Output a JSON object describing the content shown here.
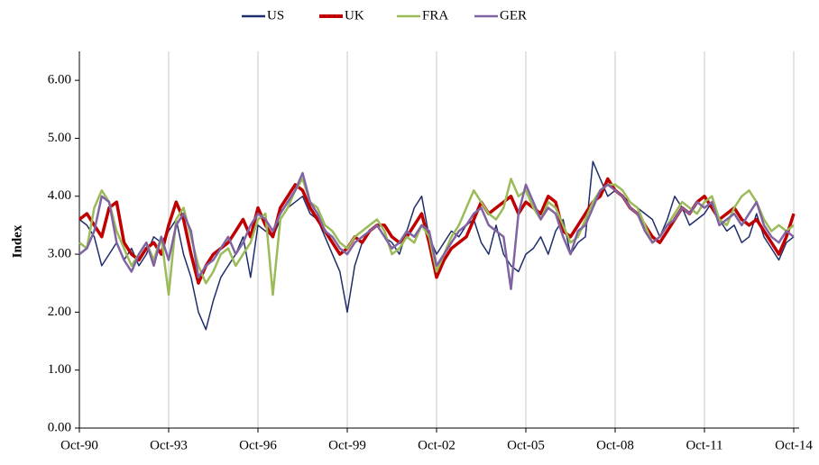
{
  "chart_data": {
    "type": "line",
    "y_label": "Index",
    "categories": [
      "Oct-90",
      null,
      null,
      null,
      null,
      null,
      null,
      null,
      null,
      null,
      null,
      null,
      "Oct-93",
      null,
      null,
      null,
      null,
      null,
      null,
      null,
      null,
      null,
      null,
      null,
      "Oct-96",
      null,
      null,
      null,
      null,
      null,
      null,
      null,
      null,
      null,
      null,
      null,
      "Oct-99",
      null,
      null,
      null,
      null,
      null,
      null,
      null,
      null,
      null,
      null,
      null,
      "Oct-02",
      null,
      null,
      null,
      null,
      null,
      null,
      null,
      null,
      null,
      null,
      null,
      "Oct-05",
      null,
      null,
      null,
      null,
      null,
      null,
      null,
      null,
      null,
      null,
      null,
      "Oct-08",
      null,
      null,
      null,
      null,
      null,
      null,
      null,
      null,
      null,
      null,
      null,
      "Oct-11",
      null,
      null,
      null,
      null,
      null,
      null,
      null,
      null,
      null,
      null,
      null,
      "Oct-14"
    ],
    "series": [
      {
        "name": "US",
        "color": "#1f2d6b",
        "values": [
          3.6,
          3.5,
          3.3,
          2.8,
          3.0,
          3.2,
          2.9,
          3.1,
          2.8,
          3.0,
          3.3,
          3.2,
          3.4,
          3.6,
          3.0,
          2.6,
          2.0,
          1.7,
          2.2,
          2.6,
          2.8,
          3.0,
          3.3,
          2.6,
          3.5,
          3.4,
          3.3,
          3.6,
          3.8,
          3.9,
          4.0,
          3.7,
          3.6,
          3.3,
          3.0,
          2.7,
          2.0,
          2.8,
          3.2,
          3.4,
          3.5,
          3.3,
          3.2,
          3.0,
          3.4,
          3.8,
          4.0,
          3.3,
          3.0,
          3.2,
          3.4,
          3.3,
          3.5,
          3.6,
          3.2,
          3.0,
          3.5,
          3.0,
          2.8,
          2.7,
          3.0,
          3.1,
          3.3,
          3.0,
          3.4,
          3.6,
          3.0,
          3.2,
          3.3,
          4.6,
          4.3,
          4.0,
          4.1,
          4.0,
          3.9,
          3.8,
          3.7,
          3.6,
          3.3,
          3.6,
          4.0,
          3.8,
          3.5,
          3.6,
          3.7,
          3.9,
          3.6,
          3.4,
          3.5,
          3.2,
          3.3,
          3.7,
          3.3,
          3.1,
          2.9,
          3.2,
          3.3
        ]
      },
      {
        "name": "UK",
        "color": "#c00000",
        "values": [
          3.6,
          3.7,
          3.5,
          3.3,
          3.8,
          3.9,
          3.2,
          3.0,
          2.9,
          3.1,
          3.2,
          3.0,
          3.5,
          3.9,
          3.6,
          3.0,
          2.5,
          2.8,
          3.0,
          3.1,
          3.2,
          3.4,
          3.6,
          3.3,
          3.8,
          3.5,
          3.3,
          3.8,
          4.0,
          4.2,
          4.1,
          3.8,
          3.6,
          3.4,
          3.2,
          3.0,
          3.1,
          3.3,
          3.2,
          3.4,
          3.5,
          3.5,
          3.3,
          3.2,
          3.3,
          3.5,
          3.7,
          3.2,
          2.6,
          2.9,
          3.1,
          3.2,
          3.3,
          3.6,
          3.9,
          3.7,
          3.8,
          3.9,
          4.0,
          3.7,
          3.9,
          3.8,
          3.7,
          4.0,
          3.9,
          3.4,
          3.3,
          3.5,
          3.7,
          3.9,
          4.0,
          4.3,
          4.1,
          4.0,
          3.8,
          3.7,
          3.5,
          3.3,
          3.2,
          3.4,
          3.6,
          3.8,
          3.7,
          3.9,
          4.0,
          3.8,
          3.6,
          3.7,
          3.8,
          3.6,
          3.5,
          3.6,
          3.4,
          3.2,
          3.0,
          3.3,
          3.7
        ]
      },
      {
        "name": "FRA",
        "color": "#9bbb59",
        "values": [
          3.2,
          3.1,
          3.8,
          4.1,
          3.9,
          3.4,
          3.1,
          2.8,
          3.0,
          3.2,
          2.9,
          3.3,
          2.3,
          3.6,
          3.8,
          3.3,
          2.8,
          2.5,
          2.7,
          3.0,
          3.1,
          2.8,
          3.0,
          3.2,
          3.6,
          3.7,
          2.3,
          3.6,
          3.8,
          4.1,
          4.3,
          3.9,
          3.8,
          3.5,
          3.4,
          3.2,
          3.1,
          3.3,
          3.4,
          3.5,
          3.6,
          3.4,
          3.0,
          3.1,
          3.3,
          3.2,
          3.5,
          3.3,
          2.7,
          3.0,
          3.3,
          3.5,
          3.8,
          4.1,
          3.9,
          3.7,
          3.6,
          3.8,
          4.3,
          4.0,
          4.1,
          3.8,
          3.6,
          3.9,
          3.8,
          3.5,
          3.2,
          3.3,
          3.6,
          3.9,
          4.1,
          4.2,
          4.2,
          4.1,
          3.9,
          3.8,
          3.5,
          3.2,
          3.3,
          3.5,
          3.7,
          3.9,
          3.8,
          3.7,
          3.9,
          4.0,
          3.6,
          3.5,
          3.8,
          4.0,
          4.1,
          3.9,
          3.6,
          3.4,
          3.5,
          3.4,
          3.5
        ]
      },
      {
        "name": "GER",
        "color": "#8064a2",
        "values": [
          3.0,
          3.1,
          3.4,
          4.0,
          3.9,
          3.2,
          2.9,
          2.7,
          3.0,
          3.2,
          2.8,
          3.3,
          2.9,
          3.5,
          3.7,
          3.4,
          2.6,
          2.8,
          2.9,
          3.1,
          3.3,
          3.0,
          3.2,
          3.5,
          3.7,
          3.6,
          3.4,
          3.7,
          3.9,
          4.1,
          4.4,
          3.9,
          3.7,
          3.4,
          3.3,
          3.1,
          3.0,
          3.2,
          3.3,
          3.4,
          3.5,
          3.3,
          3.1,
          3.2,
          3.4,
          3.3,
          3.5,
          3.4,
          2.8,
          3.0,
          3.2,
          3.4,
          3.5,
          3.7,
          3.8,
          3.5,
          3.4,
          3.3,
          2.4,
          3.7,
          4.2,
          3.9,
          3.6,
          3.8,
          3.7,
          3.3,
          3.0,
          3.4,
          3.5,
          3.8,
          4.1,
          4.2,
          4.1,
          4.0,
          3.8,
          3.7,
          3.4,
          3.2,
          3.3,
          3.5,
          3.6,
          3.8,
          3.7,
          3.9,
          3.8,
          3.9,
          3.5,
          3.6,
          3.7,
          3.5,
          3.7,
          3.9,
          3.5,
          3.3,
          3.2,
          3.4,
          3.3
        ]
      }
    ],
    "ylim": [
      0,
      6.5
    ],
    "yticks": [
      {
        "value": 0,
        "label": "0.00"
      },
      {
        "value": 1,
        "label": "1.00"
      },
      {
        "value": 2,
        "label": "2.00"
      },
      {
        "value": 3,
        "label": "3.00"
      },
      {
        "value": 4,
        "label": "4.00"
      },
      {
        "value": 5,
        "label": "5.00"
      },
      {
        "value": 6,
        "label": "6.00"
      }
    ],
    "grid": true,
    "legend": "top"
  }
}
